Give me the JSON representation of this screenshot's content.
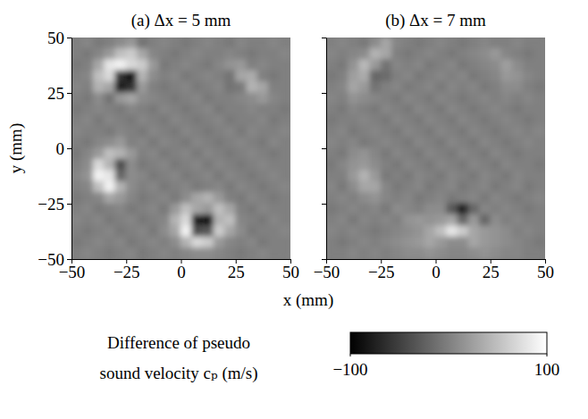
{
  "chart_data": {
    "type": "heatmap",
    "x_label": "x (mm)",
    "y_label": "y (mm)",
    "xlim": [
      -50,
      50
    ],
    "ylim": [
      -50,
      50
    ],
    "xticks": [
      {
        "value": -50,
        "label": "−50"
      },
      {
        "value": -25,
        "label": "−25"
      },
      0,
      25,
      50
    ],
    "yticks": [
      {
        "value": -50,
        "label": "−50"
      },
      {
        "value": -25,
        "label": "−25"
      },
      0,
      25,
      50
    ],
    "x": [
      -47.5,
      -42.5,
      -37.5,
      -32.5,
      -27.5,
      -22.5,
      -17.5,
      -12.5,
      -7.5,
      -2.5,
      2.5,
      7.5,
      12.5,
      17.5,
      22.5,
      27.5,
      32.5,
      37.5,
      42.5,
      47.5
    ],
    "y": [
      47.5,
      42.5,
      37.5,
      32.5,
      27.5,
      22.5,
      17.5,
      12.5,
      7.5,
      2.5,
      -2.5,
      -7.5,
      -12.5,
      -17.5,
      -22.5,
      -27.5,
      -32.5,
      -37.5,
      -42.5,
      -47.5
    ],
    "panels": [
      {
        "title": "(a) Δx = 5 mm",
        "tick_labels": true,
        "values": [
          [
            0,
            5,
            -5,
            0,
            10,
            20,
            -10,
            0,
            5,
            0,
            -5,
            0,
            5,
            0,
            -5,
            5,
            0,
            0,
            5,
            0
          ],
          [
            0,
            -5,
            5,
            20,
            50,
            60,
            30,
            5,
            0,
            -5,
            0,
            5,
            0,
            0,
            5,
            0,
            -5,
            0,
            0,
            5
          ],
          [
            -5,
            0,
            30,
            80,
            90,
            70,
            60,
            20,
            -5,
            0,
            5,
            0,
            -5,
            5,
            15,
            20,
            0,
            5,
            0,
            0
          ],
          [
            0,
            5,
            50,
            70,
            -60,
            -90,
            40,
            10,
            0,
            5,
            -5,
            0,
            5,
            0,
            -10,
            30,
            35,
            0,
            -5,
            0
          ],
          [
            5,
            0,
            40,
            30,
            -80,
            -60,
            20,
            0,
            -5,
            0,
            5,
            -5,
            0,
            5,
            -10,
            -5,
            40,
            30,
            0,
            0
          ],
          [
            0,
            -5,
            10,
            -10,
            20,
            30,
            10,
            5,
            0,
            -5,
            0,
            5,
            -5,
            0,
            0,
            5,
            10,
            20,
            5,
            0
          ],
          [
            -5,
            0,
            5,
            0,
            -5,
            5,
            0,
            -5,
            5,
            0,
            -5,
            0,
            5,
            -5,
            0,
            0,
            5,
            0,
            0,
            -5
          ],
          [
            0,
            5,
            -5,
            5,
            0,
            -5,
            5,
            0,
            -5,
            5,
            0,
            -5,
            0,
            5,
            -5,
            0,
            0,
            5,
            -5,
            0
          ],
          [
            5,
            0,
            0,
            -5,
            5,
            0,
            -5,
            5,
            0,
            -5,
            5,
            0,
            -5,
            0,
            5,
            -5,
            5,
            0,
            0,
            5
          ],
          [
            0,
            -5,
            5,
            10,
            20,
            0,
            5,
            -5,
            5,
            0,
            -5,
            5,
            0,
            -5,
            0,
            5,
            0,
            -5,
            5,
            0
          ],
          [
            -5,
            5,
            20,
            50,
            40,
            20,
            0,
            5,
            -5,
            0,
            5,
            -5,
            5,
            0,
            -5,
            0,
            5,
            0,
            -5,
            0
          ],
          [
            0,
            10,
            70,
            40,
            -40,
            10,
            -5,
            0,
            5,
            -5,
            0,
            5,
            -5,
            5,
            0,
            -5,
            0,
            5,
            0,
            0
          ],
          [
            5,
            15,
            90,
            80,
            -20,
            10,
            5,
            -5,
            0,
            5,
            -5,
            0,
            5,
            -5,
            5,
            0,
            -5,
            0,
            5,
            0
          ],
          [
            0,
            5,
            50,
            90,
            40,
            10,
            0,
            5,
            -5,
            0,
            5,
            -5,
            0,
            5,
            -5,
            5,
            0,
            -5,
            0,
            5
          ],
          [
            -5,
            0,
            5,
            30,
            20,
            5,
            -5,
            0,
            5,
            -5,
            10,
            30,
            40,
            20,
            0,
            -5,
            5,
            0,
            -5,
            0
          ],
          [
            0,
            5,
            -5,
            0,
            5,
            -5,
            0,
            5,
            -5,
            20,
            50,
            30,
            20,
            50,
            30,
            0,
            -5,
            5,
            0,
            0
          ],
          [
            5,
            0,
            5,
            -5,
            0,
            5,
            -5,
            0,
            5,
            40,
            70,
            -80,
            -90,
            40,
            50,
            5,
            0,
            -5,
            5,
            0
          ],
          [
            0,
            -5,
            0,
            5,
            -5,
            0,
            5,
            -5,
            10,
            30,
            90,
            -40,
            -30,
            60,
            30,
            10,
            -5,
            0,
            0,
            5
          ],
          [
            -5,
            0,
            5,
            0,
            5,
            -5,
            0,
            5,
            0,
            10,
            40,
            70,
            60,
            20,
            5,
            0,
            5,
            -5,
            0,
            0
          ],
          [
            0,
            5,
            0,
            -5,
            0,
            5,
            -5,
            0,
            5,
            0,
            5,
            10,
            10,
            5,
            0,
            -5,
            0,
            5,
            0,
            0
          ]
        ]
      },
      {
        "title": "(b) Δx = 7 mm",
        "tick_labels": "x",
        "values": [
          [
            0,
            5,
            0,
            -5,
            10,
            30,
            5,
            0,
            -5,
            0,
            5,
            0,
            -5,
            0,
            5,
            0,
            0,
            5,
            0,
            0
          ],
          [
            5,
            0,
            5,
            10,
            40,
            30,
            0,
            -5,
            0,
            5,
            0,
            -5,
            0,
            5,
            10,
            20,
            5,
            0,
            -5,
            0
          ],
          [
            0,
            -5,
            15,
            45,
            20,
            -10,
            5,
            0,
            5,
            -5,
            0,
            5,
            -5,
            0,
            5,
            10,
            25,
            10,
            0,
            0
          ],
          [
            -5,
            0,
            25,
            35,
            -20,
            -15,
            0,
            5,
            -5,
            0,
            5,
            0,
            5,
            -5,
            0,
            5,
            20,
            15,
            5,
            0
          ],
          [
            0,
            5,
            30,
            20,
            -10,
            0,
            5,
            -5,
            0,
            5,
            -5,
            5,
            0,
            5,
            -5,
            0,
            10,
            10,
            0,
            -5
          ],
          [
            5,
            0,
            15,
            10,
            5,
            0,
            -5,
            5,
            0,
            -5,
            5,
            0,
            -5,
            0,
            5,
            0,
            5,
            0,
            5,
            0
          ],
          [
            0,
            -5,
            5,
            0,
            -5,
            5,
            0,
            -5,
            5,
            0,
            -5,
            5,
            0,
            -5,
            0,
            5,
            0,
            -5,
            0,
            0
          ],
          [
            -5,
            0,
            0,
            5,
            0,
            -5,
            5,
            0,
            -5,
            5,
            0,
            -5,
            5,
            0,
            -5,
            0,
            5,
            0,
            -5,
            0
          ],
          [
            0,
            5,
            -5,
            0,
            5,
            0,
            -5,
            5,
            0,
            -5,
            5,
            0,
            -5,
            5,
            0,
            -5,
            0,
            5,
            0,
            5
          ],
          [
            5,
            0,
            5,
            -5,
            0,
            5,
            0,
            -5,
            5,
            0,
            -5,
            5,
            0,
            -5,
            5,
            0,
            -5,
            0,
            5,
            0
          ],
          [
            0,
            -5,
            10,
            15,
            5,
            -5,
            5,
            0,
            -5,
            5,
            0,
            -5,
            5,
            0,
            -5,
            5,
            0,
            -5,
            0,
            0
          ],
          [
            -5,
            5,
            15,
            20,
            10,
            0,
            -5,
            5,
            0,
            -5,
            5,
            0,
            -5,
            5,
            0,
            -5,
            5,
            0,
            0,
            -5
          ],
          [
            0,
            0,
            20,
            40,
            20,
            -5,
            0,
            -5,
            5,
            0,
            -5,
            5,
            0,
            -5,
            5,
            0,
            -5,
            5,
            0,
            0
          ],
          [
            5,
            -5,
            10,
            30,
            30,
            5,
            -5,
            0,
            5,
            -5,
            0,
            5,
            -5,
            0,
            5,
            -5,
            0,
            5,
            -5,
            0
          ],
          [
            0,
            5,
            0,
            10,
            15,
            5,
            0,
            5,
            -5,
            0,
            5,
            -5,
            0,
            5,
            -5,
            5,
            0,
            -5,
            0,
            5
          ],
          [
            -5,
            0,
            5,
            0,
            5,
            -5,
            10,
            5,
            0,
            10,
            10,
            -30,
            -80,
            -20,
            5,
            0,
            5,
            0,
            -5,
            0
          ],
          [
            0,
            5,
            -5,
            5,
            0,
            5,
            0,
            15,
            20,
            15,
            20,
            30,
            -20,
            20,
            -20,
            10,
            0,
            5,
            0,
            0
          ],
          [
            5,
            0,
            5,
            0,
            -5,
            0,
            5,
            10,
            15,
            30,
            50,
            80,
            60,
            30,
            20,
            15,
            10,
            0,
            5,
            0
          ],
          [
            0,
            -5,
            0,
            5,
            0,
            5,
            10,
            15,
            20,
            30,
            20,
            10,
            10,
            30,
            20,
            15,
            10,
            5,
            0,
            -5
          ],
          [
            0,
            0,
            5,
            0,
            5,
            0,
            5,
            10,
            10,
            15,
            10,
            5,
            5,
            10,
            15,
            10,
            5,
            5,
            0,
            0
          ]
        ]
      }
    ],
    "colorbar": {
      "label": [
        "Difference of pseudo",
        "sound velocity cₚ (m/s)"
      ],
      "range": [
        -100,
        100
      ],
      "ticks": [
        {
          "value": -100,
          "label": "−100"
        },
        100
      ]
    }
  }
}
